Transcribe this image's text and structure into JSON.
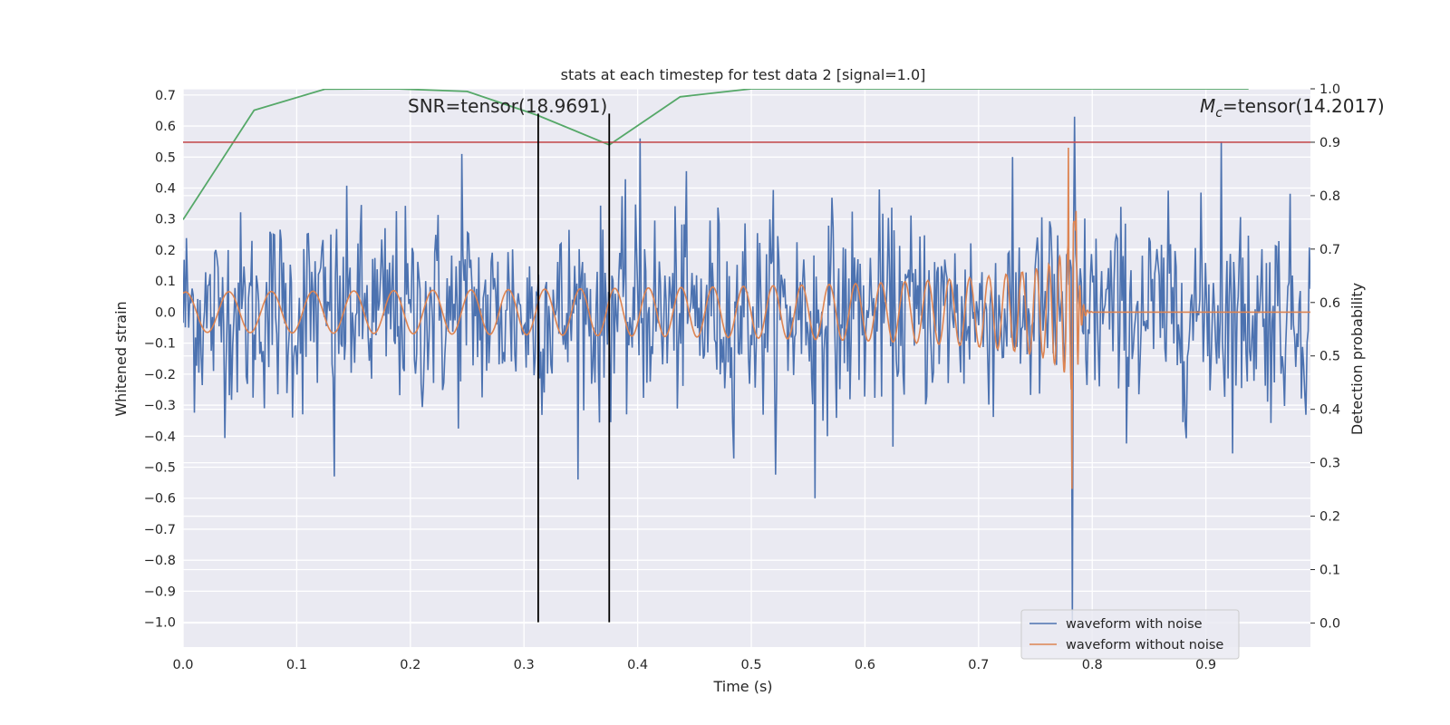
{
  "chart_data": {
    "type": "line",
    "title": "stats at each timestep for test data 2 [signal=1.0]",
    "xlabel": "Time (s)",
    "ylabel_left": "Whitened strain",
    "ylabel_right": "Detection probability",
    "xlim": [
      0.0,
      0.992
    ],
    "ylim_left": [
      -1.08,
      0.72
    ],
    "ylim_right": [
      -0.045,
      1.0
    ],
    "x_ticks": [
      "0.0",
      "0.1",
      "0.2",
      "0.3",
      "0.4",
      "0.5",
      "0.6",
      "0.7",
      "0.8",
      "0.9"
    ],
    "x_tick_values": [
      0.0,
      0.1,
      0.2,
      0.3,
      0.4,
      0.5,
      0.6,
      0.7,
      0.8,
      0.9
    ],
    "y_ticks_left": [
      "0.7",
      "0.6",
      "0.5",
      "0.4",
      "0.3",
      "0.2",
      "0.1",
      "0.0",
      "−0.1",
      "−0.2",
      "−0.3",
      "−0.4",
      "−0.5",
      "−0.6",
      "−0.7",
      "−0.8",
      "−0.9",
      "−1.0"
    ],
    "y_tick_values_left": [
      0.7,
      0.6,
      0.5,
      0.4,
      0.3,
      0.2,
      0.1,
      0.0,
      -0.1,
      -0.2,
      -0.3,
      -0.4,
      -0.5,
      -0.6,
      -0.7,
      -0.8,
      -0.9,
      -1.0
    ],
    "y_ticks_right": [
      "1.0",
      "0.9",
      "0.8",
      "0.7",
      "0.6",
      "0.5",
      "0.4",
      "0.3",
      "0.2",
      "0.1",
      "0.0"
    ],
    "y_tick_values_right": [
      1.0,
      0.9,
      0.8,
      0.7,
      0.6,
      0.5,
      0.4,
      0.3,
      0.2,
      0.1,
      0.0
    ],
    "annotations": {
      "snr": "SNR=tensor(18.9691)",
      "mc_symbol": "M",
      "mc_subscript": "c",
      "mc_rest": "=tensor(14.2017)"
    },
    "legend": {
      "placement": "lower-right",
      "entries": [
        "waveform with noise",
        "waveform without noise"
      ]
    },
    "colors": {
      "noisy": "#4c72b0",
      "clean": "#dd8452",
      "probability": "#55a868",
      "threshold": "#c44e52",
      "markers": "#000000",
      "plot_bg": "#eaeaf2",
      "grid": "#ffffff"
    },
    "detection_probability": {
      "axis": "right",
      "x": [
        0.0,
        0.0625,
        0.125,
        0.1875,
        0.25,
        0.3125,
        0.375,
        0.4375,
        0.5,
        0.5625,
        0.625,
        0.6875,
        0.75,
        0.8125,
        0.875,
        0.9375
      ],
      "y": [
        0.755,
        0.96,
        0.9995,
        1.0,
        0.995,
        0.95,
        0.895,
        0.985,
        1.0,
        1.0,
        1.0,
        1.0,
        1.0,
        1.0,
        1.0,
        1.0
      ]
    },
    "threshold_line": {
      "axis": "right",
      "y": 0.9
    },
    "vertical_markers": {
      "x": [
        0.3125,
        0.375
      ],
      "y_range_left": [
        -1.0,
        0.64
      ]
    },
    "series": [
      {
        "name": "waveform with noise",
        "axis": "left",
        "description_samples": 1000,
        "noise_std": 0.16,
        "notable_points": [
          {
            "x": 0.782,
            "y": -1.0
          },
          {
            "x": 0.784,
            "y": 0.63
          },
          {
            "x": 0.914,
            "y": 0.55
          },
          {
            "x": 0.556,
            "y": -0.6
          },
          {
            "x": 0.133,
            "y": -0.53
          },
          {
            "x": 0.245,
            "y": 0.51
          },
          {
            "x": 0.402,
            "y": 0.56
          }
        ]
      },
      {
        "name": "waveform without noise",
        "axis": "left",
        "chirp": {
          "t_merge": 0.785,
          "amp_start": 0.065,
          "freq_start": 26,
          "ringdown_level": 0.0
        },
        "notable_points": [
          {
            "x": 0.779,
            "y": 0.53
          },
          {
            "x": 0.782,
            "y": -0.57
          }
        ]
      }
    ]
  }
}
